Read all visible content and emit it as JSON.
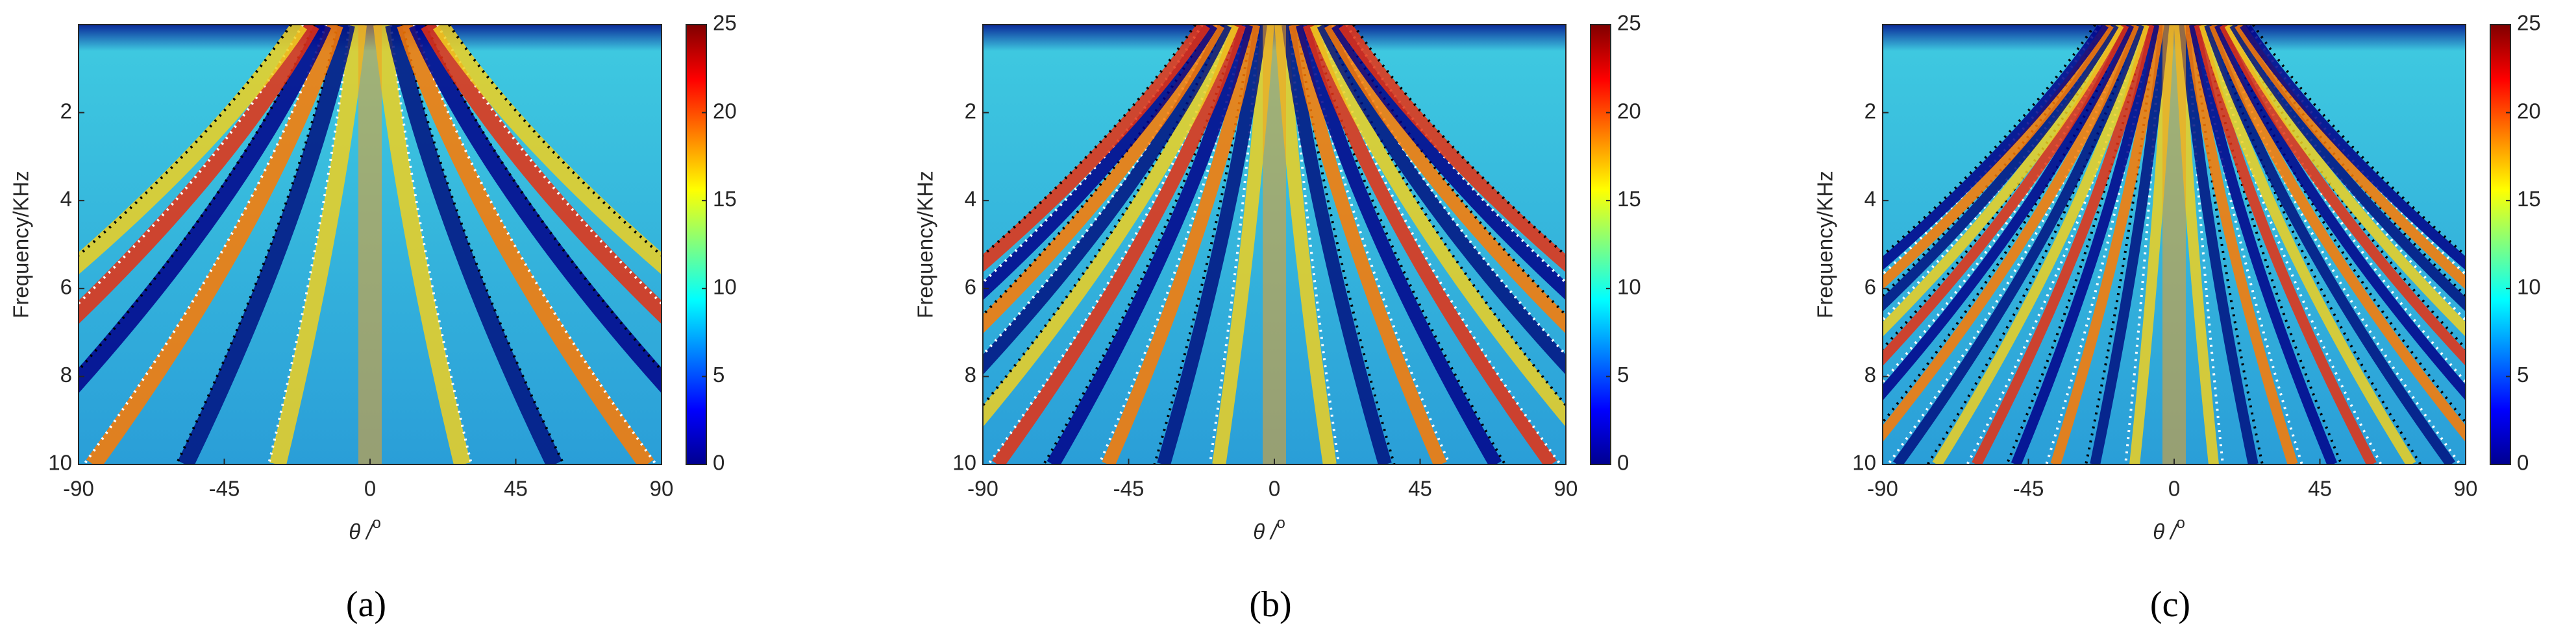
{
  "chart_data": [
    {
      "type": "heatmap",
      "panel_label": "(a)",
      "x_label": "θ  /",
      "x_label_sup": "o",
      "y_label": "Frequency/KHz",
      "xlim": [
        -90,
        90
      ],
      "xticks": [
        -90,
        -45,
        0,
        45,
        90
      ],
      "ylim": [
        0,
        10
      ],
      "yticks": [
        2,
        4,
        6,
        8,
        10
      ],
      "y_reversed": true,
      "colormap": "jet",
      "clim": [
        0,
        25
      ],
      "cticks": [
        0,
        5,
        10,
        15,
        20,
        25
      ]
    },
    {
      "type": "heatmap",
      "panel_label": "(b)",
      "x_label": "θ  /",
      "x_label_sup": "o",
      "y_label": "Frequency/KHz",
      "xlim": [
        -90,
        90
      ],
      "xticks": [
        -90,
        -45,
        0,
        45,
        90
      ],
      "ylim": [
        0,
        10
      ],
      "yticks": [
        2,
        4,
        6,
        8,
        10
      ],
      "y_reversed": true,
      "colormap": "jet",
      "clim": [
        0,
        25
      ],
      "cticks": [
        0,
        5,
        10,
        15,
        20,
        25
      ]
    },
    {
      "type": "heatmap",
      "panel_label": "(c)",
      "x_label": "θ  /",
      "x_label_sup": "o",
      "y_label": "Frequency/KHz",
      "xlim": [
        -90,
        90
      ],
      "xticks": [
        -90,
        -45,
        0,
        45,
        90
      ],
      "ylim": [
        0,
        10
      ],
      "yticks": [
        2,
        4,
        6,
        8,
        10
      ],
      "y_reversed": true,
      "colormap": "jet",
      "clim": [
        0,
        25
      ],
      "cticks": [
        0,
        5,
        10,
        15,
        20,
        25
      ]
    }
  ]
}
